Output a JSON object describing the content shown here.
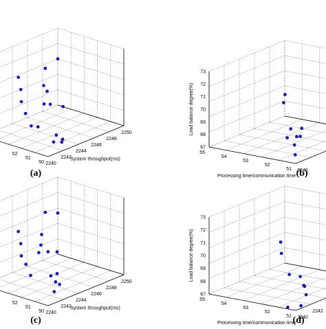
{
  "panel_labels": [
    "(a)",
    "(b)",
    "(c)",
    "(d)"
  ],
  "chart_data": [
    {
      "type": "scatter",
      "panel_label": "(a)",
      "title": "",
      "xlabel": "System throughput(ms)",
      "ylabel": "",
      "zlabel": "",
      "x_ticks": [
        "2240",
        "2242",
        "2244",
        "2246",
        "2248",
        "2250"
      ],
      "y_ticks": [
        "50",
        "51",
        "52"
      ],
      "z_ticks": [],
      "grid": true,
      "color": "#1a1aa6",
      "points": [
        {
          "x": 2245.2,
          "y": 53.2,
          "z": 71.6
        },
        {
          "x": 2248.6,
          "y": 54.2,
          "z": 71.2
        },
        {
          "x": 2240.6,
          "y": 52.6,
          "z": 72.2
        },
        {
          "x": 2240.4,
          "y": 52.3,
          "z": 71.4
        },
        {
          "x": 2240.3,
          "y": 52.2,
          "z": 70.5
        },
        {
          "x": 2241.2,
          "y": 52.4,
          "z": 69.3
        },
        {
          "x": 2241.6,
          "y": 52.2,
          "z": 68.3
        },
        {
          "x": 2244.3,
          "y": 52.8,
          "z": 70.6
        },
        {
          "x": 2244.4,
          "y": 52.6,
          "z": 70.2
        },
        {
          "x": 2243.3,
          "y": 52.2,
          "z": 69.6
        },
        {
          "x": 2244.3,
          "y": 52.3,
          "z": 69.3
        },
        {
          "x": 2245.8,
          "y": 52.2,
          "z": 68.8
        },
        {
          "x": 2240.4,
          "y": 51.0,
          "z": 68.9
        },
        {
          "x": 2243.0,
          "y": 51.1,
          "z": 67.6
        },
        {
          "x": 2243.0,
          "y": 51.3,
          "z": 67.0
        },
        {
          "x": 2244.0,
          "y": 51.2,
          "z": 67.0
        },
        {
          "x": 2243.2,
          "y": 50.8,
          "z": 67.1
        }
      ]
    },
    {
      "type": "scatter",
      "panel_label": "(b)",
      "title": "",
      "xlabel": "",
      "ylabel": "Processing time/communication time",
      "zlabel": "Load balance degree(%)",
      "x_ticks": [
        "2240"
      ],
      "y_ticks": [
        "55",
        "54",
        "53",
        "52",
        "51"
      ],
      "z_ticks": [
        "67",
        "68",
        "69",
        "70",
        "71",
        "72",
        "73"
      ],
      "grid": true,
      "color": "#1a1aa6",
      "points": [
        {
          "x": 2240.3,
          "y": 51.6,
          "z": 72.2
        },
        {
          "x": 2240.4,
          "y": 51.7,
          "z": 71.5
        },
        {
          "x": 2240.2,
          "y": 51.3,
          "z": 69.6
        },
        {
          "x": 2240.3,
          "y": 51.5,
          "z": 68.8
        },
        {
          "x": 2240.5,
          "y": 50.9,
          "z": 69.7
        },
        {
          "x": 2240.6,
          "y": 51.0,
          "z": 69.0
        },
        {
          "x": 2240.7,
          "y": 51.2,
          "z": 68.9
        },
        {
          "x": 2240.7,
          "y": 51.3,
          "z": 68.2
        },
        {
          "x": 2240.5,
          "y": 51.2,
          "z": 67.5
        }
      ]
    },
    {
      "type": "scatter",
      "panel_label": "(c)",
      "title": "",
      "xlabel": "System throughput(ms)",
      "ylabel": "",
      "zlabel": "",
      "x_ticks": [
        "2240",
        "2242",
        "2244",
        "2246",
        "2248",
        "2250"
      ],
      "y_ticks": [
        "50",
        "51",
        "52"
      ],
      "z_ticks": [],
      "grid": true,
      "color": "#1a1aa6",
      "points": [
        {
          "x": 2245.2,
          "y": 53.2,
          "z": 72.0
        },
        {
          "x": 2248.6,
          "y": 54.2,
          "z": 70.8
        },
        {
          "x": 2240.6,
          "y": 52.6,
          "z": 71.8
        },
        {
          "x": 2240.4,
          "y": 52.3,
          "z": 71.0
        },
        {
          "x": 2240.3,
          "y": 52.2,
          "z": 70.1
        },
        {
          "x": 2240.9,
          "y": 52.2,
          "z": 69.3
        },
        {
          "x": 2240.3,
          "y": 51.5,
          "z": 68.8
        },
        {
          "x": 2244.2,
          "y": 52.9,
          "z": 70.6
        },
        {
          "x": 2243.4,
          "y": 52.5,
          "z": 70.1
        },
        {
          "x": 2242.6,
          "y": 52.2,
          "z": 69.8
        },
        {
          "x": 2244.0,
          "y": 52.3,
          "z": 69.5
        },
        {
          "x": 2245.2,
          "y": 52.3,
          "z": 69.2
        },
        {
          "x": 2242.8,
          "y": 51.4,
          "z": 68.2
        },
        {
          "x": 2243.8,
          "y": 51.5,
          "z": 68.1
        },
        {
          "x": 2242.9,
          "y": 51.1,
          "z": 67.8
        },
        {
          "x": 2243.6,
          "y": 51.2,
          "z": 67.4
        },
        {
          "x": 2242.2,
          "y": 50.8,
          "z": 67.3
        }
      ]
    },
    {
      "type": "scatter",
      "panel_label": "(d)",
      "title": "",
      "xlabel": "",
      "ylabel": "Processing time/communication time",
      "zlabel": "Load balance degree(%)",
      "x_ticks": [
        "2240",
        "2242"
      ],
      "y_ticks": [
        "55",
        "54",
        "53",
        "52",
        "51"
      ],
      "z_ticks": [
        "67",
        "68",
        "69",
        "70",
        "71",
        "72",
        "73"
      ],
      "grid": true,
      "color": "#1a1aa6",
      "points": [
        {
          "x": 2240.3,
          "y": 51.8,
          "z": 72.0
        },
        {
          "x": 2240.4,
          "y": 51.8,
          "z": 71.1
        },
        {
          "x": 2240.3,
          "y": 51.4,
          "z": 69.6
        },
        {
          "x": 2240.6,
          "y": 51.0,
          "z": 69.5
        },
        {
          "x": 2240.2,
          "y": 50.7,
          "z": 69.0
        },
        {
          "x": 2240.6,
          "y": 50.8,
          "z": 68.8
        },
        {
          "x": 2240.8,
          "y": 50.8,
          "z": 68.1
        },
        {
          "x": 2239.8,
          "y": 51.3,
          "z": 67.2
        },
        {
          "x": 2240.7,
          "y": 51.0,
          "z": 67.2
        }
      ]
    }
  ]
}
